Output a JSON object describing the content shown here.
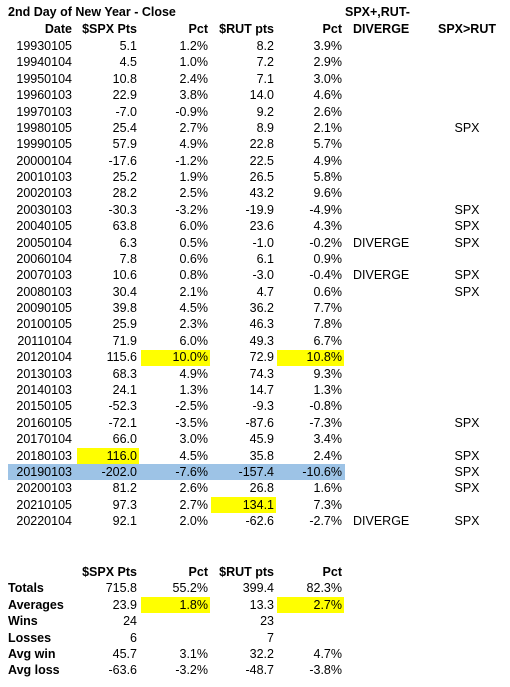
{
  "title": "2nd Day of New Year - Close",
  "header": {
    "group": "SPX+,RUT-",
    "date": "Date",
    "spx": "$SPX Pts",
    "spx_pct": "Pct",
    "rut": "$RUT pts",
    "rut_pct": "Pct",
    "diverge": "DIVERGE",
    "spx_gt_rut": "SPX>RUT"
  },
  "table": {
    "rows": [
      {
        "date": "19930105",
        "spx": "5.1",
        "spx_pct": "1.2%",
        "rut": "8.2",
        "rut_pct": "3.9%"
      },
      {
        "date": "19940104",
        "spx": "4.5",
        "spx_pct": "1.0%",
        "rut": "7.2",
        "rut_pct": "2.9%"
      },
      {
        "date": "19950104",
        "spx": "10.8",
        "spx_pct": "2.4%",
        "rut": "7.1",
        "rut_pct": "3.0%"
      },
      {
        "date": "19960103",
        "spx": "22.9",
        "spx_pct": "3.8%",
        "rut": "14.0",
        "rut_pct": "4.6%"
      },
      {
        "date": "19970103",
        "spx": "-7.0",
        "spx_pct": "-0.9%",
        "rut": "9.2",
        "rut_pct": "2.6%"
      },
      {
        "date": "19980105",
        "spx": "25.4",
        "spx_pct": "2.7%",
        "rut": "8.9",
        "rut_pct": "2.1%",
        "spx_gt_rut": "SPX"
      },
      {
        "date": "19990105",
        "spx": "57.9",
        "spx_pct": "4.9%",
        "rut": "22.8",
        "rut_pct": "5.7%"
      },
      {
        "date": "20000104",
        "spx": "-17.6",
        "spx_pct": "-1.2%",
        "rut": "22.5",
        "rut_pct": "4.9%"
      },
      {
        "date": "20010103",
        "spx": "25.2",
        "spx_pct": "1.9%",
        "rut": "26.5",
        "rut_pct": "5.8%"
      },
      {
        "date": "20020103",
        "spx": "28.2",
        "spx_pct": "2.5%",
        "rut": "43.2",
        "rut_pct": "9.6%"
      },
      {
        "date": "20030103",
        "spx": "-30.3",
        "spx_pct": "-3.2%",
        "rut": "-19.9",
        "rut_pct": "-4.9%",
        "spx_gt_rut": "SPX"
      },
      {
        "date": "20040105",
        "spx": "63.8",
        "spx_pct": "6.0%",
        "rut": "23.6",
        "rut_pct": "4.3%",
        "spx_gt_rut": "SPX"
      },
      {
        "date": "20050104",
        "spx": "6.3",
        "spx_pct": "0.5%",
        "rut": "-1.0",
        "rut_pct": "-0.2%",
        "diverge": "DIVERGE",
        "spx_gt_rut": "SPX"
      },
      {
        "date": "20060104",
        "spx": "7.8",
        "spx_pct": "0.6%",
        "rut": "6.1",
        "rut_pct": "0.9%"
      },
      {
        "date": "20070103",
        "spx": "10.6",
        "spx_pct": "0.8%",
        "rut": "-3.0",
        "rut_pct": "-0.4%",
        "diverge": "DIVERGE",
        "spx_gt_rut": "SPX"
      },
      {
        "date": "20080103",
        "spx": "30.4",
        "spx_pct": "2.1%",
        "rut": "4.7",
        "rut_pct": "0.6%",
        "spx_gt_rut": "SPX"
      },
      {
        "date": "20090105",
        "spx": "39.8",
        "spx_pct": "4.5%",
        "rut": "36.2",
        "rut_pct": "7.7%"
      },
      {
        "date": "20100105",
        "spx": "25.9",
        "spx_pct": "2.3%",
        "rut": "46.3",
        "rut_pct": "7.8%"
      },
      {
        "date": "20110104",
        "spx": "71.9",
        "spx_pct": "6.0%",
        "rut": "49.3",
        "rut_pct": "6.7%"
      },
      {
        "date": "20120104",
        "spx": "115.6",
        "spx_pct": "10.0%",
        "rut": "72.9",
        "rut_pct": "10.8%",
        "highlight": {
          "spx_pct": "#ffff00",
          "rut_pct": "#ffff00"
        }
      },
      {
        "date": "20130103",
        "spx": "68.3",
        "spx_pct": "4.9%",
        "rut": "74.3",
        "rut_pct": "9.3%"
      },
      {
        "date": "20140103",
        "spx": "24.1",
        "spx_pct": "1.3%",
        "rut": "14.7",
        "rut_pct": "1.3%"
      },
      {
        "date": "20150105",
        "spx": "-52.3",
        "spx_pct": "-2.5%",
        "rut": "-9.3",
        "rut_pct": "-0.8%"
      },
      {
        "date": "20160105",
        "spx": "-72.1",
        "spx_pct": "-3.5%",
        "rut": "-87.6",
        "rut_pct": "-7.3%",
        "spx_gt_rut": "SPX"
      },
      {
        "date": "20170104",
        "spx": "66.0",
        "spx_pct": "3.0%",
        "rut": "45.9",
        "rut_pct": "3.4%"
      },
      {
        "date": "20180103",
        "spx": "116.0",
        "spx_pct": "4.5%",
        "rut": "35.8",
        "rut_pct": "2.4%",
        "spx_gt_rut": "SPX",
        "highlight": {
          "spx": "#ffff00"
        }
      },
      {
        "date": "20190103",
        "spx": "-202.0",
        "spx_pct": "-7.6%",
        "rut": "-157.4",
        "rut_pct": "-10.6%",
        "spx_gt_rut": "SPX",
        "row_color": "#9dc3e6"
      },
      {
        "date": "20200103",
        "spx": "81.2",
        "spx_pct": "2.6%",
        "rut": "26.8",
        "rut_pct": "1.6%",
        "spx_gt_rut": "SPX"
      },
      {
        "date": "20210105",
        "spx": "97.3",
        "spx_pct": "2.7%",
        "rut": "134.1",
        "rut_pct": "7.3%",
        "highlight": {
          "rut": "#ffff00"
        }
      },
      {
        "date": "20220104",
        "spx": "92.1",
        "spx_pct": "2.0%",
        "rut": "-62.6",
        "rut_pct": "-2.7%",
        "diverge": "DIVERGE",
        "spx_gt_rut": "SPX"
      }
    ]
  },
  "summary": {
    "header": {
      "spx": "$SPX Pts",
      "spx_pct": "Pct",
      "rut": "$RUT pts",
      "rut_pct": "Pct"
    },
    "rows": [
      {
        "label": "Totals",
        "spx": "715.8",
        "spx_pct": "55.2%",
        "rut": "399.4",
        "rut_pct": "82.3%"
      },
      {
        "label": "Averages",
        "spx": "23.9",
        "spx_pct": "1.8%",
        "rut": "13.3",
        "rut_pct": "2.7%",
        "highlight": {
          "spx_pct": "#ffff00",
          "rut_pct": "#ffff00"
        }
      },
      {
        "label": "Wins",
        "spx": "24",
        "rut": "23"
      },
      {
        "label": "Losses",
        "spx": "6",
        "rut": "7"
      },
      {
        "label": "Avg win",
        "spx": "45.7",
        "spx_pct": "3.1%",
        "rut": "32.2",
        "rut_pct": "4.7%"
      },
      {
        "label": "Avg loss",
        "spx": "-63.6",
        "spx_pct": "-3.2%",
        "rut": "-48.7",
        "rut_pct": "-3.8%"
      }
    ]
  }
}
